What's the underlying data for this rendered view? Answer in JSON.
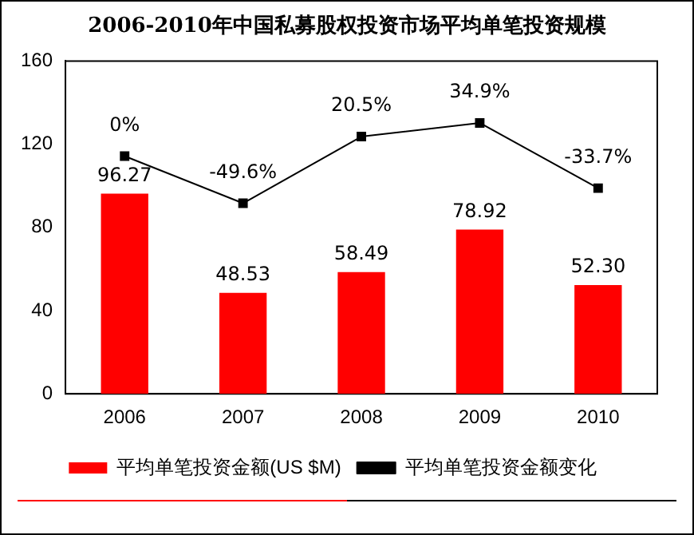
{
  "chart_data": {
    "type": "bar",
    "title": "2006-2010年中国私募股权投资市场平均单笔投资规模",
    "categories": [
      "2006",
      "2007",
      "2008",
      "2009",
      "2010"
    ],
    "series": [
      {
        "name": "平均单笔投资金额(US $M)",
        "color": "#ff0000",
        "values": [
          96.27,
          48.53,
          58.49,
          78.92,
          52.3
        ],
        "value_labels": [
          "96.27",
          "48.53",
          "58.49",
          "78.92",
          "52.30"
        ]
      },
      {
        "name": "平均单笔投资金额变化",
        "type": "line",
        "axis": "y2",
        "color": "#000000",
        "marker": "square",
        "values": [
          0,
          -49.6,
          20.5,
          34.9,
          -33.7
        ],
        "value_labels": [
          "0%",
          "-49.6%",
          "20.5%",
          "34.9%",
          "-33.7%"
        ]
      }
    ],
    "ylim": [
      0,
      160
    ],
    "yticks": [
      0,
      40,
      80,
      120,
      160
    ],
    "grid": false,
    "legend": "bottom"
  }
}
